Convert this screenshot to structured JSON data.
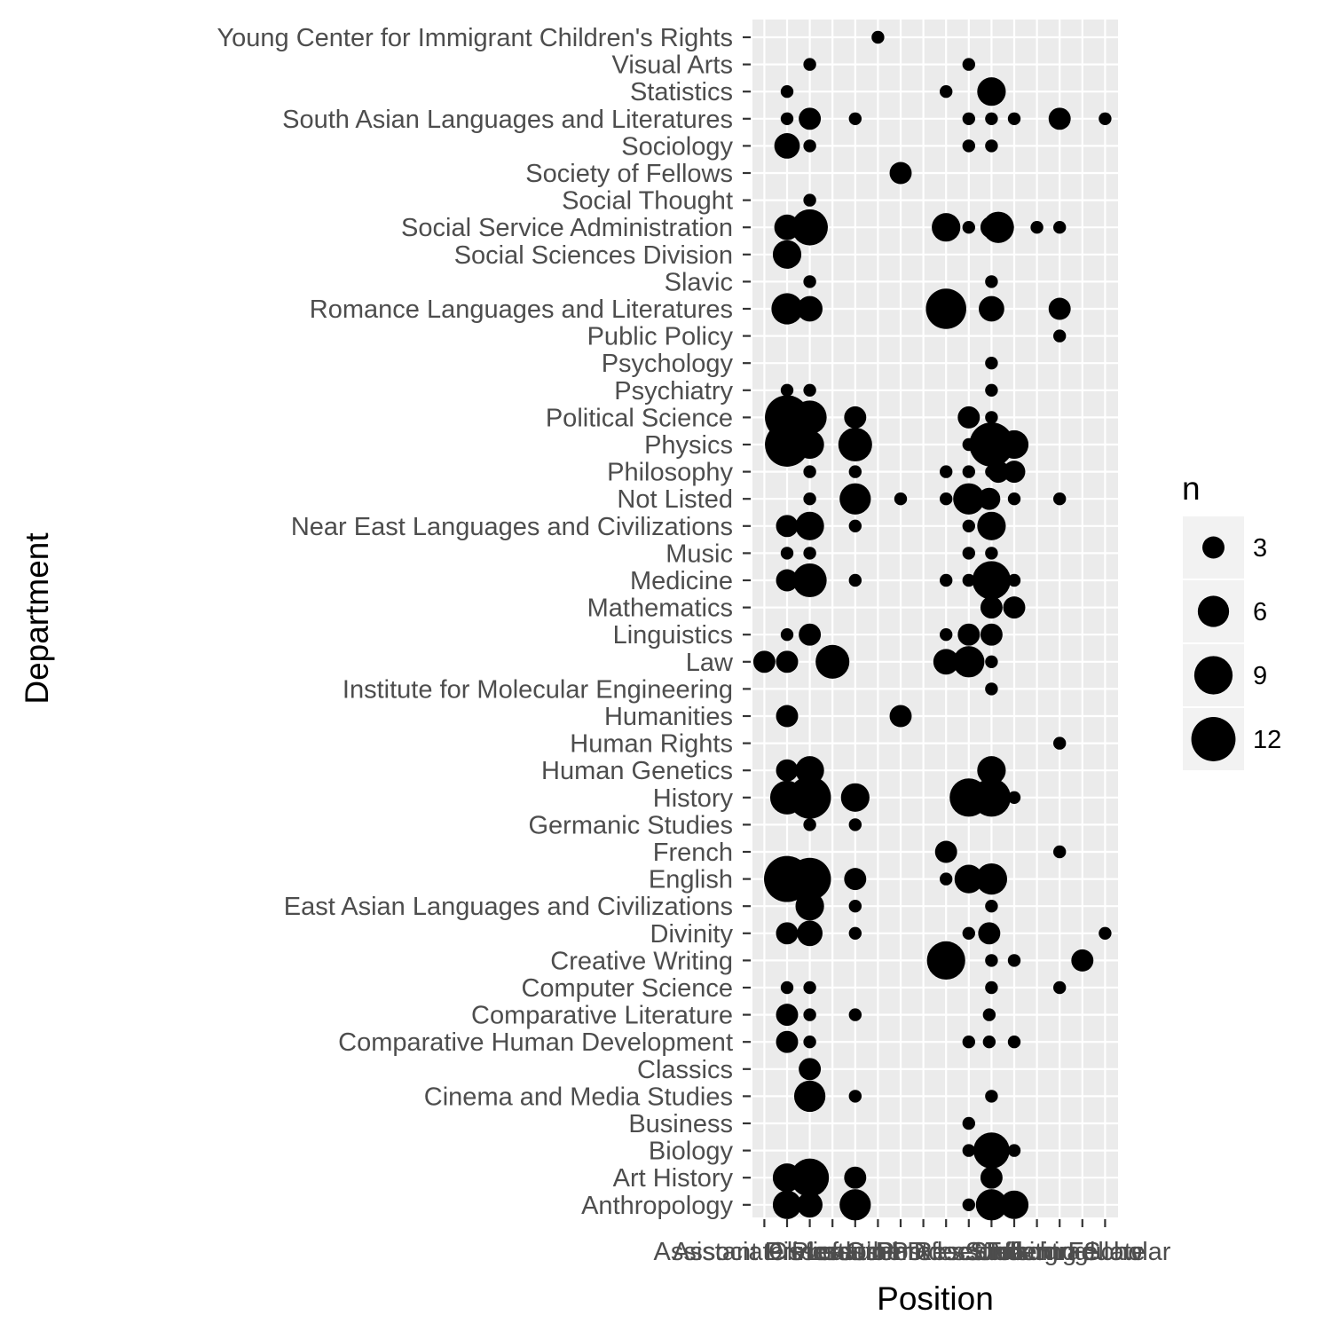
{
  "chart_data": {
    "type": "scatter",
    "xlabel": "Position",
    "ylabel": "Department",
    "x_categories": [
      "Assistant Professor",
      "Associate Professor",
      "Clinical",
      "Dissertation",
      "Lecturer",
      "Other",
      "PhD",
      "Postdoc",
      "Professor",
      "Research",
      "Staff",
      "Student",
      "Teaching",
      "Undergraduate",
      "Visiting Scholar",
      "Fellow"
    ],
    "y_categories": [
      "Anthropology",
      "Art History",
      "Biology",
      "Business",
      "Cinema and Media Studies",
      "Classics",
      "Comparative Human Development",
      "Comparative Literature",
      "Computer Science",
      "Creative Writing",
      "Divinity",
      "East Asian Languages and Civilizations",
      "English",
      "French",
      "Germanic Studies",
      "History",
      "Human Genetics",
      "Human Rights",
      "Humanities",
      "Institute for Molecular Engineering",
      "Law",
      "Linguistics",
      "Mathematics",
      "Medicine",
      "Music",
      "Near East Languages and Civilizations",
      "Not Listed",
      "Philosophy",
      "Physics",
      "Political Science",
      "Psychiatry",
      "Psychology",
      "Public Policy",
      "Romance Languages and Literatures",
      "Slavic",
      "Social Sciences Division",
      "Social Service Administration",
      "Social Thought",
      "Society of Fellows",
      "Sociology",
      "South Asian Languages and Literatures",
      "Statistics",
      "Visual Arts",
      "Young Center for Immigrant Children's Rights"
    ],
    "size_legend": {
      "title": "n",
      "breaks": [
        3,
        6,
        9,
        12
      ]
    },
    "points": [
      {
        "dept": "Young Center for Immigrant Children's Rights",
        "pos": 6,
        "n": 1
      },
      {
        "dept": "Visual Arts",
        "pos": 3,
        "n": 1
      },
      {
        "dept": "Visual Arts",
        "pos": 10,
        "n": 1
      },
      {
        "dept": "Statistics",
        "pos": 2,
        "n": 1
      },
      {
        "dept": "Statistics",
        "pos": 9,
        "n": 1
      },
      {
        "dept": "Statistics",
        "pos": 11,
        "n": 5
      },
      {
        "dept": "South Asian Languages and Literatures",
        "pos": 2,
        "n": 1
      },
      {
        "dept": "South Asian Languages and Literatures",
        "pos": 3,
        "n": 3
      },
      {
        "dept": "South Asian Languages and Literatures",
        "pos": 5,
        "n": 1
      },
      {
        "dept": "South Asian Languages and Literatures",
        "pos": 10,
        "n": 1
      },
      {
        "dept": "South Asian Languages and Literatures",
        "pos": 11,
        "n": 1
      },
      {
        "dept": "South Asian Languages and Literatures",
        "pos": 12,
        "n": 1
      },
      {
        "dept": "South Asian Languages and Literatures",
        "pos": 14,
        "n": 3
      },
      {
        "dept": "South Asian Languages and Literatures",
        "pos": 16,
        "n": 1
      },
      {
        "dept": "Sociology",
        "pos": 2,
        "n": 4
      },
      {
        "dept": "Sociology",
        "pos": 3,
        "n": 1
      },
      {
        "dept": "Sociology",
        "pos": 10,
        "n": 1
      },
      {
        "dept": "Sociology",
        "pos": 11,
        "n": 1
      },
      {
        "dept": "Society of Fellows",
        "pos": 7,
        "n": 3
      },
      {
        "dept": "Social Thought",
        "pos": 3,
        "n": 1
      },
      {
        "dept": "Social Service Administration",
        "pos": 2,
        "n": 4
      },
      {
        "dept": "Social Service Administration",
        "pos": 3,
        "n": 8
      },
      {
        "dept": "Social Service Administration",
        "pos": 9,
        "n": 5
      },
      {
        "dept": "Social Service Administration",
        "pos": 10,
        "n": 1
      },
      {
        "dept": "Social Service Administration",
        "pos": 11,
        "n": 3
      },
      {
        "dept": "Social Service Administration",
        "pos": 11.3,
        "n": 6
      },
      {
        "dept": "Social Service Administration",
        "pos": 13,
        "n": 1
      },
      {
        "dept": "Social Service Administration",
        "pos": 14,
        "n": 1
      },
      {
        "dept": "Social Sciences Division",
        "pos": 2,
        "n": 5
      },
      {
        "dept": "Slavic",
        "pos": 3,
        "n": 1
      },
      {
        "dept": "Slavic",
        "pos": 11,
        "n": 1
      },
      {
        "dept": "Romance Languages and Literatures",
        "pos": 2,
        "n": 6
      },
      {
        "dept": "Romance Languages and Literatures",
        "pos": 3,
        "n": 4
      },
      {
        "dept": "Romance Languages and Literatures",
        "pos": 9,
        "n": 10
      },
      {
        "dept": "Romance Languages and Literatures",
        "pos": 11,
        "n": 4
      },
      {
        "dept": "Romance Languages and Literatures",
        "pos": 14,
        "n": 3
      },
      {
        "dept": "Public Policy",
        "pos": 14,
        "n": 1
      },
      {
        "dept": "Psychology",
        "pos": 11,
        "n": 1
      },
      {
        "dept": "Psychiatry",
        "pos": 2,
        "n": 1
      },
      {
        "dept": "Psychiatry",
        "pos": 3,
        "n": 1
      },
      {
        "dept": "Psychiatry",
        "pos": 11,
        "n": 1
      },
      {
        "dept": "Political Science",
        "pos": 2,
        "n": 12
      },
      {
        "dept": "Political Science",
        "pos": 3,
        "n": 7
      },
      {
        "dept": "Political Science",
        "pos": 5,
        "n": 3
      },
      {
        "dept": "Political Science",
        "pos": 10,
        "n": 3
      },
      {
        "dept": "Political Science",
        "pos": 11,
        "n": 1
      },
      {
        "dept": "Physics",
        "pos": 2,
        "n": 12
      },
      {
        "dept": "Physics",
        "pos": 3,
        "n": 5
      },
      {
        "dept": "Physics",
        "pos": 5,
        "n": 7
      },
      {
        "dept": "Physics",
        "pos": 10,
        "n": 1
      },
      {
        "dept": "Physics",
        "pos": 11,
        "n": 12
      },
      {
        "dept": "Physics",
        "pos": 12,
        "n": 5
      },
      {
        "dept": "Philosophy",
        "pos": 3,
        "n": 1
      },
      {
        "dept": "Philosophy",
        "pos": 5,
        "n": 1
      },
      {
        "dept": "Philosophy",
        "pos": 9,
        "n": 1
      },
      {
        "dept": "Philosophy",
        "pos": 10,
        "n": 1
      },
      {
        "dept": "Philosophy",
        "pos": 11,
        "n": 1
      },
      {
        "dept": "Philosophy",
        "pos": 11.3,
        "n": 3
      },
      {
        "dept": "Philosophy",
        "pos": 12,
        "n": 3
      },
      {
        "dept": "Not Listed",
        "pos": 3,
        "n": 1
      },
      {
        "dept": "Not Listed",
        "pos": 5,
        "n": 6
      },
      {
        "dept": "Not Listed",
        "pos": 7,
        "n": 1
      },
      {
        "dept": "Not Listed",
        "pos": 9,
        "n": 1
      },
      {
        "dept": "Not Listed",
        "pos": 10,
        "n": 6
      },
      {
        "dept": "Not Listed",
        "pos": 10.9,
        "n": 3
      },
      {
        "dept": "Not Listed",
        "pos": 11,
        "n": 1
      },
      {
        "dept": "Not Listed",
        "pos": 12,
        "n": 1
      },
      {
        "dept": "Not Listed",
        "pos": 14,
        "n": 1
      },
      {
        "dept": "Near East Languages and Civilizations",
        "pos": 2,
        "n": 3
      },
      {
        "dept": "Near East Languages and Civilizations",
        "pos": 3,
        "n": 5
      },
      {
        "dept": "Near East Languages and Civilizations",
        "pos": 5,
        "n": 1
      },
      {
        "dept": "Near East Languages and Civilizations",
        "pos": 10,
        "n": 1
      },
      {
        "dept": "Near East Languages and Civilizations",
        "pos": 11,
        "n": 5
      },
      {
        "dept": "Music",
        "pos": 2,
        "n": 1
      },
      {
        "dept": "Music",
        "pos": 3,
        "n": 1
      },
      {
        "dept": "Music",
        "pos": 10,
        "n": 1
      },
      {
        "dept": "Music",
        "pos": 11,
        "n": 1
      },
      {
        "dept": "Medicine",
        "pos": 2,
        "n": 3
      },
      {
        "dept": "Medicine",
        "pos": 3,
        "n": 7
      },
      {
        "dept": "Medicine",
        "pos": 5,
        "n": 1
      },
      {
        "dept": "Medicine",
        "pos": 9,
        "n": 1
      },
      {
        "dept": "Medicine",
        "pos": 10,
        "n": 1
      },
      {
        "dept": "Medicine",
        "pos": 11,
        "n": 1
      },
      {
        "dept": "Medicine",
        "pos": 11,
        "n": 9
      },
      {
        "dept": "Medicine",
        "pos": 12,
        "n": 1
      },
      {
        "dept": "Mathematics",
        "pos": 11,
        "n": 3
      },
      {
        "dept": "Mathematics",
        "pos": 12,
        "n": 3
      },
      {
        "dept": "Linguistics",
        "pos": 2,
        "n": 1
      },
      {
        "dept": "Linguistics",
        "pos": 3,
        "n": 3
      },
      {
        "dept": "Linguistics",
        "pos": 9,
        "n": 1
      },
      {
        "dept": "Linguistics",
        "pos": 10,
        "n": 3
      },
      {
        "dept": "Linguistics",
        "pos": 11,
        "n": 3
      },
      {
        "dept": "Law",
        "pos": 1,
        "n": 3
      },
      {
        "dept": "Law",
        "pos": 2,
        "n": 3
      },
      {
        "dept": "Law",
        "pos": 4,
        "n": 7
      },
      {
        "dept": "Law",
        "pos": 9,
        "n": 4
      },
      {
        "dept": "Law",
        "pos": 10,
        "n": 6
      },
      {
        "dept": "Law",
        "pos": 11,
        "n": 1
      },
      {
        "dept": "Institute for Molecular Engineering",
        "pos": 11,
        "n": 1
      },
      {
        "dept": "Humanities",
        "pos": 2,
        "n": 3
      },
      {
        "dept": "Humanities",
        "pos": 7,
        "n": 3
      },
      {
        "dept": "Human Rights",
        "pos": 14,
        "n": 1
      },
      {
        "dept": "Human Genetics",
        "pos": 2,
        "n": 3
      },
      {
        "dept": "Human Genetics",
        "pos": 3,
        "n": 5
      },
      {
        "dept": "Human Genetics",
        "pos": 11,
        "n": 5
      },
      {
        "dept": "History",
        "pos": 2,
        "n": 7
      },
      {
        "dept": "History",
        "pos": 3,
        "n": 11
      },
      {
        "dept": "History",
        "pos": 5,
        "n": 5
      },
      {
        "dept": "History",
        "pos": 10,
        "n": 9
      },
      {
        "dept": "History",
        "pos": 11,
        "n": 9
      },
      {
        "dept": "History",
        "pos": 12,
        "n": 1
      },
      {
        "dept": "Germanic Studies",
        "pos": 3,
        "n": 1
      },
      {
        "dept": "Germanic Studies",
        "pos": 5,
        "n": 1
      },
      {
        "dept": "French",
        "pos": 9,
        "n": 3
      },
      {
        "dept": "French",
        "pos": 14,
        "n": 1
      },
      {
        "dept": "English",
        "pos": 2,
        "n": 13
      },
      {
        "dept": "English",
        "pos": 3,
        "n": 11
      },
      {
        "dept": "English",
        "pos": 5,
        "n": 3
      },
      {
        "dept": "English",
        "pos": 9,
        "n": 1
      },
      {
        "dept": "English",
        "pos": 10,
        "n": 5
      },
      {
        "dept": "English",
        "pos": 11,
        "n": 1
      },
      {
        "dept": "English",
        "pos": 11,
        "n": 6
      },
      {
        "dept": "East Asian Languages and Civilizations",
        "pos": 3,
        "n": 5
      },
      {
        "dept": "East Asian Languages and Civilizations",
        "pos": 5,
        "n": 1
      },
      {
        "dept": "East Asian Languages and Civilizations",
        "pos": 11,
        "n": 1
      },
      {
        "dept": "Divinity",
        "pos": 2,
        "n": 3
      },
      {
        "dept": "Divinity",
        "pos": 3,
        "n": 4
      },
      {
        "dept": "Divinity",
        "pos": 5,
        "n": 1
      },
      {
        "dept": "Divinity",
        "pos": 10,
        "n": 1
      },
      {
        "dept": "Divinity",
        "pos": 10.9,
        "n": 3
      },
      {
        "dept": "Divinity",
        "pos": 11,
        "n": 1
      },
      {
        "dept": "Divinity",
        "pos": 16,
        "n": 1
      },
      {
        "dept": "Creative Writing",
        "pos": 9,
        "n": 9
      },
      {
        "dept": "Creative Writing",
        "pos": 11,
        "n": 1
      },
      {
        "dept": "Creative Writing",
        "pos": 12,
        "n": 1
      },
      {
        "dept": "Creative Writing",
        "pos": 15,
        "n": 3
      },
      {
        "dept": "Computer Science",
        "pos": 2,
        "n": 1
      },
      {
        "dept": "Computer Science",
        "pos": 3,
        "n": 1
      },
      {
        "dept": "Computer Science",
        "pos": 11,
        "n": 1
      },
      {
        "dept": "Computer Science",
        "pos": 14,
        "n": 1
      },
      {
        "dept": "Comparative Literature",
        "pos": 2,
        "n": 3
      },
      {
        "dept": "Comparative Literature",
        "pos": 3,
        "n": 1
      },
      {
        "dept": "Comparative Literature",
        "pos": 5,
        "n": 1
      },
      {
        "dept": "Comparative Literature",
        "pos": 10.9,
        "n": 1
      },
      {
        "dept": "Comparative Human Development",
        "pos": 2,
        "n": 3
      },
      {
        "dept": "Comparative Human Development",
        "pos": 3,
        "n": 1
      },
      {
        "dept": "Comparative Human Development",
        "pos": 10,
        "n": 1
      },
      {
        "dept": "Comparative Human Development",
        "pos": 10.9,
        "n": 1
      },
      {
        "dept": "Comparative Human Development",
        "pos": 12,
        "n": 1
      },
      {
        "dept": "Classics",
        "pos": 3,
        "n": 3
      },
      {
        "dept": "Cinema and Media Studies",
        "pos": 3,
        "n": 6
      },
      {
        "dept": "Cinema and Media Studies",
        "pos": 5,
        "n": 1
      },
      {
        "dept": "Cinema and Media Studies",
        "pos": 11,
        "n": 1
      },
      {
        "dept": "Business",
        "pos": 10,
        "n": 1
      },
      {
        "dept": "Biology",
        "pos": 10,
        "n": 1
      },
      {
        "dept": "Biology",
        "pos": 11,
        "n": 8
      },
      {
        "dept": "Biology",
        "pos": 12,
        "n": 1
      },
      {
        "dept": "Art History",
        "pos": 2,
        "n": 5
      },
      {
        "dept": "Art History",
        "pos": 3,
        "n": 9
      },
      {
        "dept": "Art History",
        "pos": 5,
        "n": 3
      },
      {
        "dept": "Art History",
        "pos": 10.9,
        "n": 1
      },
      {
        "dept": "Art History",
        "pos": 11,
        "n": 3
      },
      {
        "dept": "Anthropology",
        "pos": 2,
        "n": 5
      },
      {
        "dept": "Anthropology",
        "pos": 3,
        "n": 4
      },
      {
        "dept": "Anthropology",
        "pos": 5,
        "n": 6
      },
      {
        "dept": "Anthropology",
        "pos": 10,
        "n": 1
      },
      {
        "dept": "Anthropology",
        "pos": 11,
        "n": 6
      },
      {
        "dept": "Anthropology",
        "pos": 12,
        "n": 5
      }
    ]
  }
}
